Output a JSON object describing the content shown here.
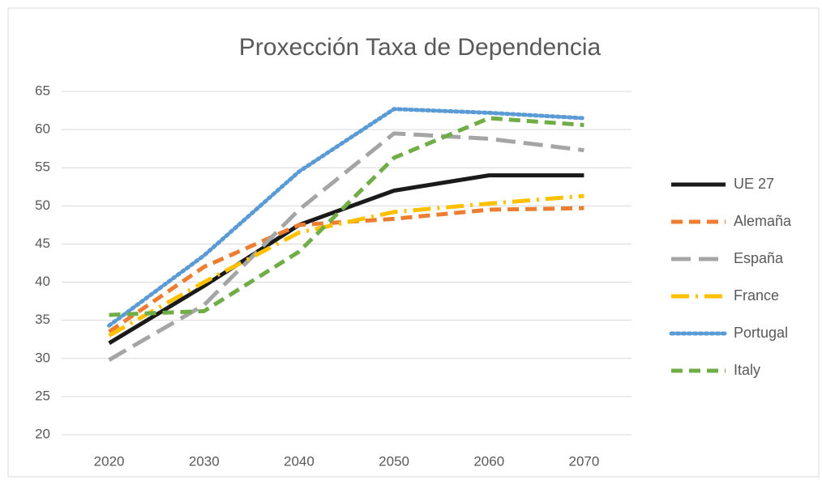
{
  "chart_data": {
    "type": "line",
    "title": "Proxección Taxa de Dependencia",
    "categories": [
      "2020",
      "2030",
      "2040",
      "2050",
      "2060",
      "2070"
    ],
    "ylim": [
      20,
      65
    ],
    "yticks": [
      20,
      25,
      30,
      35,
      40,
      45,
      50,
      55,
      60,
      65
    ],
    "grid": true,
    "legend": "right",
    "series": [
      {
        "name": "UE 27",
        "color": "#1a1a1a",
        "dash": "solid",
        "values": [
          32,
          39.5,
          47.5,
          52,
          54,
          54
        ]
      },
      {
        "name": "Alemaña",
        "color": "#ed7d31",
        "dash": "dash",
        "values": [
          33.5,
          42,
          47.5,
          48.3,
          49.5,
          49.7
        ]
      },
      {
        "name": "España",
        "color": "#a5a5a5",
        "dash": "longdash",
        "values": [
          29.8,
          37,
          49.5,
          59.5,
          58.8,
          57.3
        ]
      },
      {
        "name": "France",
        "color": "#ffc000",
        "dash": "dashdot",
        "values": [
          33,
          40,
          46.5,
          49.2,
          50.3,
          51.3
        ]
      },
      {
        "name": "Portugal",
        "color": "#5b9bd5",
        "dash": "dot",
        "values": [
          34.3,
          43.5,
          54.5,
          62.7,
          62.2,
          61.5
        ]
      },
      {
        "name": "Italy",
        "color": "#70ad47",
        "dash": "dash",
        "values": [
          35.7,
          36.2,
          44,
          56.3,
          61.5,
          60.6
        ]
      }
    ]
  }
}
